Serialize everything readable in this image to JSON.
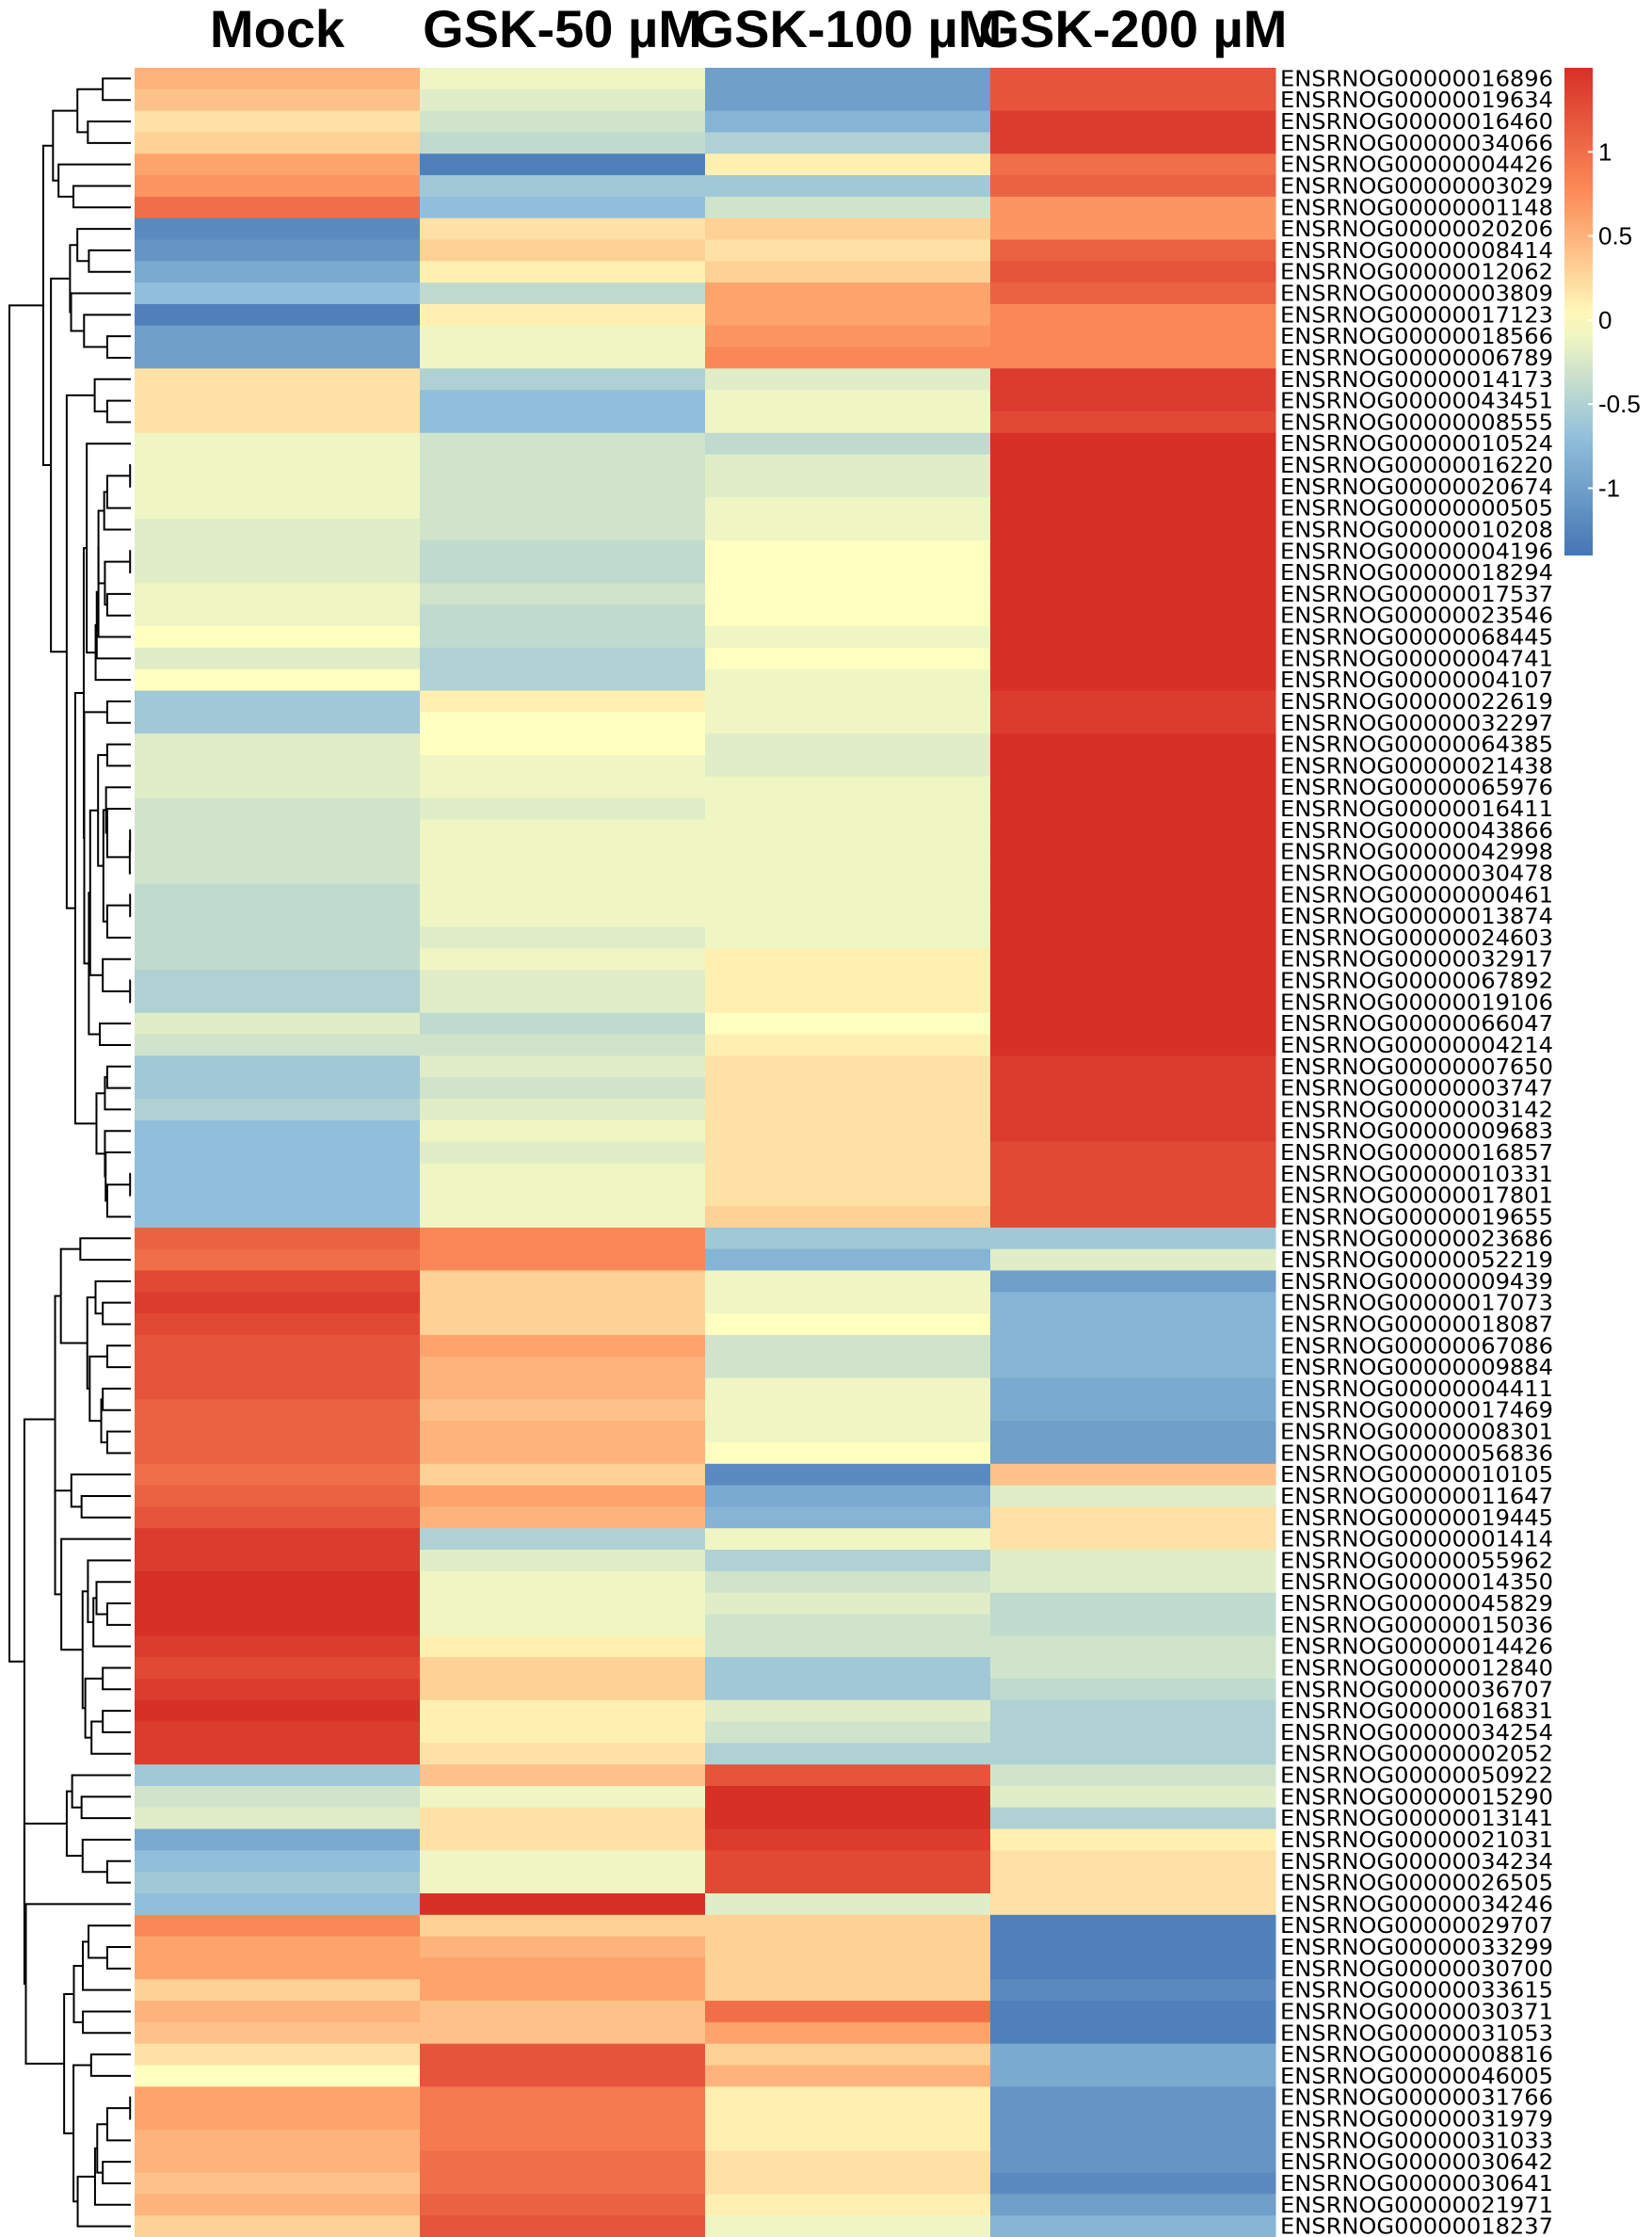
{
  "chart_data": {
    "type": "heatmap",
    "title": "",
    "columns": [
      "Mock",
      "GSK-50 µM",
      "GSK-100 µM",
      "GSK-200 µM"
    ],
    "rows": [
      "ENSRNOG00000016896",
      "ENSRNOG00000019634",
      "ENSRNOG00000016460",
      "ENSRNOG00000034066",
      "ENSRNOG00000004426",
      "ENSRNOG00000003029",
      "ENSRNOG00000001148",
      "ENSRNOG00000020206",
      "ENSRNOG00000008414",
      "ENSRNOG00000012062",
      "ENSRNOG00000003809",
      "ENSRNOG00000017123",
      "ENSRNOG00000018566",
      "ENSRNOG00000006789",
      "ENSRNOG00000014173",
      "ENSRNOG00000043451",
      "ENSRNOG00000008555",
      "ENSRNOG00000010524",
      "ENSRNOG00000016220",
      "ENSRNOG00000020674",
      "ENSRNOG00000000505",
      "ENSRNOG00000010208",
      "ENSRNOG00000004196",
      "ENSRNOG00000018294",
      "ENSRNOG00000017537",
      "ENSRNOG00000023546",
      "ENSRNOG00000068445",
      "ENSRNOG00000004741",
      "ENSRNOG00000004107",
      "ENSRNOG00000022619",
      "ENSRNOG00000032297",
      "ENSRNOG00000064385",
      "ENSRNOG00000021438",
      "ENSRNOG00000065976",
      "ENSRNOG00000016411",
      "ENSRNOG00000043866",
      "ENSRNOG00000042998",
      "ENSRNOG00000030478",
      "ENSRNOG00000000461",
      "ENSRNOG00000013874",
      "ENSRNOG00000024603",
      "ENSRNOG00000032917",
      "ENSRNOG00000067892",
      "ENSRNOG00000019106",
      "ENSRNOG00000066047",
      "ENSRNOG00000004214",
      "ENSRNOG00000007650",
      "ENSRNOG00000003747",
      "ENSRNOG00000003142",
      "ENSRNOG00000009683",
      "ENSRNOG00000016857",
      "ENSRNOG00000010331",
      "ENSRNOG00000017801",
      "ENSRNOG00000019655",
      "ENSRNOG00000023686",
      "ENSRNOG00000052219",
      "ENSRNOG00000009439",
      "ENSRNOG00000017073",
      "ENSRNOG00000018087",
      "ENSRNOG00000067086",
      "ENSRNOG00000009884",
      "ENSRNOG00000004411",
      "ENSRNOG00000017469",
      "ENSRNOG00000008301",
      "ENSRNOG00000056836",
      "ENSRNOG00000010105",
      "ENSRNOG00000011647",
      "ENSRNOG00000019445",
      "ENSRNOG00000001414",
      "ENSRNOG00000055962",
      "ENSRNOG00000014350",
      "ENSRNOG00000045829",
      "ENSRNOG00000015036",
      "ENSRNOG00000014426",
      "ENSRNOG00000012840",
      "ENSRNOG00000036707",
      "ENSRNOG00000016831",
      "ENSRNOG00000034254",
      "ENSRNOG00000002052",
      "ENSRNOG00000050922",
      "ENSRNOG00000015290",
      "ENSRNOG00000013141",
      "ENSRNOG00000021031",
      "ENSRNOG00000034234",
      "ENSRNOG00000026505",
      "ENSRNOG00000034246",
      "ENSRNOG00000029707",
      "ENSRNOG00000033299",
      "ENSRNOG00000030700",
      "ENSRNOG00000033615",
      "ENSRNOG00000030371",
      "ENSRNOG00000031053",
      "ENSRNOG00000008816",
      "ENSRNOG00000046005",
      "ENSRNOG00000031766",
      "ENSRNOG00000031979",
      "ENSRNOG00000031033",
      "ENSRNOG00000030642",
      "ENSRNOG00000030641",
      "ENSRNOG00000021971",
      "ENSRNOG00000018237"
    ],
    "values": [
      [
        0.5,
        -0.1,
        -1.0,
        1.2
      ],
      [
        0.4,
        -0.2,
        -1.0,
        1.2
      ],
      [
        0.2,
        -0.3,
        -0.8,
        1.4
      ],
      [
        0.3,
        -0.4,
        -0.5,
        1.4
      ],
      [
        0.6,
        -1.3,
        0.1,
        1.0
      ],
      [
        0.7,
        -0.6,
        -0.6,
        1.1
      ],
      [
        1.0,
        -0.7,
        -0.3,
        0.7
      ],
      [
        -1.2,
        0.2,
        0.3,
        0.7
      ],
      [
        -1.1,
        0.3,
        0.2,
        1.1
      ],
      [
        -0.9,
        0.1,
        0.3,
        1.2
      ],
      [
        -0.7,
        -0.4,
        0.6,
        1.1
      ],
      [
        -1.3,
        0.1,
        0.6,
        0.8
      ],
      [
        -1.0,
        -0.1,
        0.7,
        0.8
      ],
      [
        -1.0,
        -0.1,
        0.8,
        0.8
      ],
      [
        0.2,
        -0.5,
        -0.2,
        1.4
      ],
      [
        0.2,
        -0.7,
        -0.1,
        1.4
      ],
      [
        0.2,
        -0.7,
        -0.1,
        1.3
      ],
      [
        -0.1,
        -0.3,
        -0.4,
        1.5
      ],
      [
        -0.1,
        -0.3,
        -0.2,
        1.5
      ],
      [
        -0.1,
        -0.3,
        -0.2,
        1.5
      ],
      [
        -0.1,
        -0.3,
        -0.1,
        1.5
      ],
      [
        -0.2,
        -0.3,
        -0.1,
        1.5
      ],
      [
        -0.2,
        -0.4,
        0.0,
        1.5
      ],
      [
        -0.2,
        -0.4,
        0.0,
        1.5
      ],
      [
        -0.1,
        -0.3,
        0.0,
        1.5
      ],
      [
        -0.1,
        -0.4,
        0.0,
        1.5
      ],
      [
        0.0,
        -0.4,
        -0.1,
        1.5
      ],
      [
        -0.2,
        -0.5,
        0.0,
        1.5
      ],
      [
        0.0,
        -0.5,
        -0.1,
        1.5
      ],
      [
        -0.6,
        0.1,
        -0.1,
        1.4
      ],
      [
        -0.6,
        0.0,
        -0.1,
        1.4
      ],
      [
        -0.2,
        0.0,
        -0.2,
        1.5
      ],
      [
        -0.2,
        -0.1,
        -0.2,
        1.5
      ],
      [
        -0.2,
        -0.1,
        -0.1,
        1.5
      ],
      [
        -0.3,
        -0.2,
        -0.1,
        1.5
      ],
      [
        -0.3,
        -0.1,
        -0.1,
        1.5
      ],
      [
        -0.3,
        -0.1,
        -0.1,
        1.5
      ],
      [
        -0.3,
        -0.1,
        -0.1,
        1.5
      ],
      [
        -0.4,
        -0.1,
        -0.1,
        1.5
      ],
      [
        -0.4,
        -0.1,
        -0.1,
        1.5
      ],
      [
        -0.4,
        -0.2,
        -0.1,
        1.5
      ],
      [
        -0.4,
        -0.1,
        0.1,
        1.5
      ],
      [
        -0.5,
        -0.2,
        0.1,
        1.5
      ],
      [
        -0.5,
        -0.2,
        0.1,
        1.5
      ],
      [
        -0.2,
        -0.4,
        0.0,
        1.5
      ],
      [
        -0.3,
        -0.3,
        0.1,
        1.5
      ],
      [
        -0.6,
        -0.2,
        0.2,
        1.4
      ],
      [
        -0.6,
        -0.3,
        0.2,
        1.4
      ],
      [
        -0.5,
        -0.2,
        0.2,
        1.4
      ],
      [
        -0.7,
        -0.1,
        0.2,
        1.4
      ],
      [
        -0.7,
        -0.2,
        0.2,
        1.3
      ],
      [
        -0.7,
        -0.1,
        0.2,
        1.3
      ],
      [
        -0.7,
        -0.1,
        0.2,
        1.3
      ],
      [
        -0.7,
        -0.1,
        0.3,
        1.3
      ],
      [
        1.1,
        0.8,
        -0.6,
        -0.6
      ],
      [
        1.0,
        0.8,
        -0.8,
        -0.2
      ],
      [
        1.3,
        0.3,
        -0.1,
        -1.0
      ],
      [
        1.4,
        0.3,
        -0.1,
        -0.8
      ],
      [
        1.3,
        0.3,
        0.0,
        -0.8
      ],
      [
        1.2,
        0.6,
        -0.3,
        -0.8
      ],
      [
        1.2,
        0.5,
        -0.3,
        -0.8
      ],
      [
        1.2,
        0.5,
        -0.1,
        -0.9
      ],
      [
        1.1,
        0.4,
        -0.1,
        -0.9
      ],
      [
        1.1,
        0.5,
        -0.1,
        -1.0
      ],
      [
        1.1,
        0.5,
        0.0,
        -1.0
      ],
      [
        1.0,
        0.3,
        -1.2,
        0.4
      ],
      [
        1.1,
        0.6,
        -0.9,
        -0.2
      ],
      [
        1.2,
        0.5,
        -0.8,
        0.2
      ],
      [
        1.4,
        -0.5,
        -0.1,
        0.2
      ],
      [
        1.4,
        -0.2,
        -0.5,
        -0.2
      ],
      [
        1.5,
        -0.1,
        -0.3,
        -0.2
      ],
      [
        1.5,
        -0.1,
        -0.2,
        -0.4
      ],
      [
        1.5,
        -0.1,
        -0.3,
        -0.4
      ],
      [
        1.4,
        0.1,
        -0.3,
        -0.3
      ],
      [
        1.3,
        0.3,
        -0.6,
        -0.3
      ],
      [
        1.4,
        0.3,
        -0.6,
        -0.4
      ],
      [
        1.5,
        0.1,
        -0.2,
        -0.5
      ],
      [
        1.4,
        0.1,
        -0.3,
        -0.5
      ],
      [
        1.4,
        0.2,
        -0.5,
        -0.5
      ],
      [
        -0.6,
        0.4,
        1.2,
        -0.3
      ],
      [
        -0.3,
        -0.1,
        1.5,
        -0.2
      ],
      [
        -0.2,
        0.2,
        1.5,
        -0.5
      ],
      [
        -0.9,
        0.2,
        1.4,
        0.1
      ],
      [
        -0.7,
        -0.1,
        1.3,
        0.2
      ],
      [
        -0.6,
        -0.1,
        1.3,
        0.2
      ],
      [
        -0.7,
        1.5,
        -0.2,
        0.2
      ],
      [
        0.8,
        0.3,
        0.3,
        -1.3
      ],
      [
        0.6,
        0.5,
        0.3,
        -1.3
      ],
      [
        0.6,
        0.6,
        0.3,
        -1.3
      ],
      [
        0.3,
        0.6,
        0.3,
        -1.2
      ],
      [
        0.5,
        0.4,
        1.0,
        -1.3
      ],
      [
        0.4,
        0.4,
        0.6,
        -1.3
      ],
      [
        0.2,
        1.2,
        0.3,
        -0.9
      ],
      [
        0.0,
        1.2,
        0.5,
        -0.9
      ],
      [
        0.6,
        0.9,
        0.1,
        -1.1
      ],
      [
        0.6,
        0.9,
        0.1,
        -1.1
      ],
      [
        0.5,
        0.9,
        0.1,
        -1.1
      ],
      [
        0.5,
        1.0,
        0.2,
        -1.1
      ],
      [
        0.4,
        1.0,
        0.2,
        -1.2
      ],
      [
        0.5,
        1.1,
        0.1,
        -1.0
      ],
      [
        0.3,
        1.2,
        -0.1,
        -0.8
      ]
    ],
    "color_scale": {
      "low": "#4575b4",
      "mid": "#ffffbf",
      "high": "#d73027",
      "range": [
        -1.4,
        1.5
      ],
      "ticks": [
        1,
        0.5,
        0,
        -0.5,
        -1
      ],
      "tick_labels": [
        "1",
        "0.5",
        "0",
        "-0.5",
        "-1"
      ]
    },
    "row_dendrogram": true,
    "legend": "top-right"
  }
}
